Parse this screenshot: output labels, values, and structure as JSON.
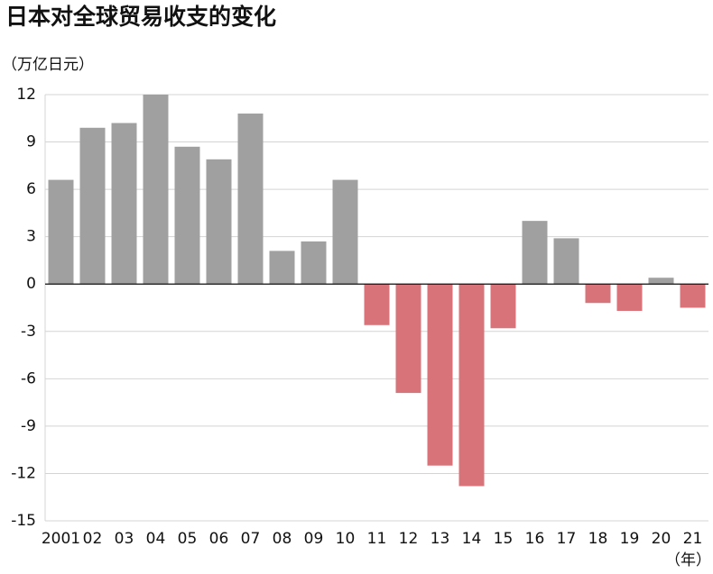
{
  "chart_data": {
    "type": "bar",
    "title": "日本对全球贸易收支的变化",
    "y_label": "（万亿日元）",
    "x_label": "（年）",
    "categories": [
      "2001",
      "02",
      "03",
      "04",
      "05",
      "06",
      "07",
      "08",
      "09",
      "10",
      "11",
      "12",
      "13",
      "14",
      "15",
      "16",
      "17",
      "18",
      "19",
      "20",
      "21"
    ],
    "values": [
      6.6,
      9.9,
      10.2,
      12.0,
      8.7,
      7.9,
      10.8,
      2.1,
      2.7,
      6.6,
      -2.6,
      -6.9,
      -11.5,
      -12.8,
      -2.8,
      4.0,
      2.9,
      -1.2,
      -1.7,
      0.4,
      -1.5
    ],
    "positive_color": "#a0a0a0",
    "negative_color": "#d9737a",
    "ylim": [
      -15,
      12
    ],
    "yticks": [
      -15,
      -12,
      -9,
      -6,
      -3,
      0,
      3,
      6,
      9,
      12
    ],
    "grid": true
  }
}
